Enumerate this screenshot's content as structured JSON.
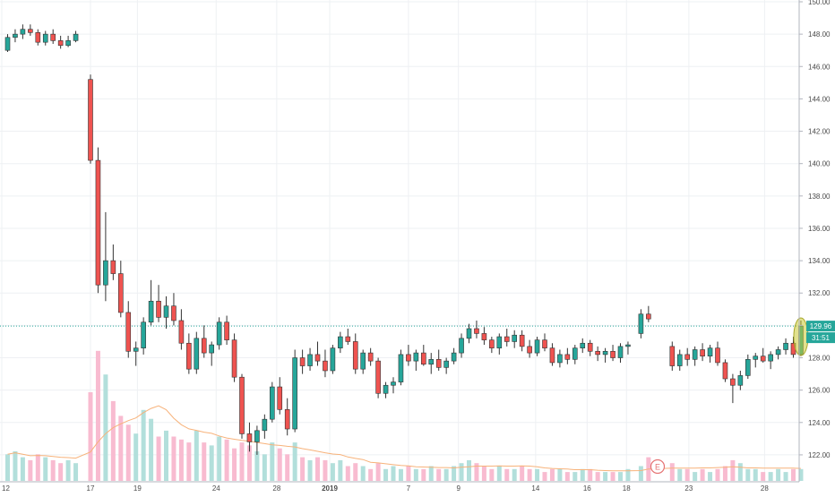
{
  "chart_data": {
    "type": "candlestick",
    "y_axis": {
      "range": [
        121,
        150
      ],
      "ticks": [
        "122.00",
        "124.00",
        "126.00",
        "128.00",
        "130.00",
        "132.00",
        "134.00",
        "136.00",
        "138.00",
        "140.00",
        "142.00",
        "144.00",
        "146.00",
        "148.00",
        "150.00"
      ]
    },
    "x_axis": {
      "ticks": [
        {
          "label": "12",
          "date": "2018-12-12"
        },
        {
          "label": "17",
          "date": "2018-12-17"
        },
        {
          "label": "19",
          "date": "2018-12-19"
        },
        {
          "label": "24",
          "date": "2018-12-24"
        },
        {
          "label": "28",
          "date": "2018-12-28"
        },
        {
          "label": "2019",
          "date": "2019-01-02"
        },
        {
          "label": "7",
          "date": "2019-01-07"
        },
        {
          "label": "9",
          "date": "2019-01-09"
        },
        {
          "label": "14",
          "date": "2019-01-14"
        },
        {
          "label": "16",
          "date": "2019-01-16"
        },
        {
          "label": "18",
          "date": "2019-01-18"
        },
        {
          "label": "23",
          "date": "2019-01-23"
        },
        {
          "label": "28",
          "date": "2019-01-28"
        }
      ]
    },
    "last_price": {
      "value": "129.96",
      "countdown": "31:51"
    },
    "event_marker": "E",
    "grid": true,
    "colors": {
      "up": "#26a69a",
      "down": "#ef5350",
      "volume_up": "#b2dfdb",
      "volume_down": "#f8bbd0",
      "ma_line": "#f7b27a",
      "price_line": "#26a69a",
      "highlight": "#c8c832"
    },
    "candles": [
      [
        147.0,
        148.0,
        146.9,
        147.8
      ],
      [
        147.8,
        148.3,
        147.5,
        148.0
      ],
      [
        148.0,
        148.6,
        147.7,
        148.3
      ],
      [
        148.3,
        148.6,
        147.9,
        148.1
      ],
      [
        148.1,
        148.3,
        147.3,
        147.5
      ],
      [
        147.5,
        148.2,
        147.3,
        148.0
      ],
      [
        148.0,
        148.3,
        147.4,
        147.6
      ],
      [
        147.6,
        147.9,
        147.1,
        147.3
      ],
      [
        147.3,
        147.9,
        147.2,
        147.6
      ],
      [
        147.6,
        148.2,
        147.5,
        148.0
      ],
      [
        145.2,
        145.5,
        140.0,
        140.2
      ],
      [
        140.2,
        141.0,
        132.0,
        132.5
      ],
      [
        132.5,
        137.0,
        131.5,
        134.0
      ],
      [
        134.0,
        135.0,
        132.8,
        133.2
      ],
      [
        133.2,
        134.0,
        130.5,
        130.8
      ],
      [
        130.8,
        131.5,
        128.0,
        128.4
      ],
      [
        128.4,
        129.0,
        127.5,
        128.6
      ],
      [
        128.6,
        130.5,
        128.2,
        130.2
      ],
      [
        130.2,
        132.8,
        130.0,
        131.5
      ],
      [
        131.5,
        132.5,
        130.2,
        130.5
      ],
      [
        130.5,
        131.8,
        129.8,
        131.2
      ],
      [
        131.2,
        132.0,
        130.0,
        130.3
      ],
      [
        130.3,
        131.0,
        128.5,
        128.9
      ],
      [
        128.9,
        129.5,
        127.0,
        127.3
      ],
      [
        127.3,
        129.6,
        127.0,
        129.2
      ],
      [
        129.2,
        130.0,
        128.0,
        128.3
      ],
      [
        128.3,
        129.0,
        127.5,
        128.8
      ],
      [
        128.8,
        130.5,
        128.5,
        130.2
      ],
      [
        130.2,
        130.6,
        128.8,
        129.1
      ],
      [
        129.1,
        129.5,
        126.5,
        126.8
      ],
      [
        126.8,
        127.0,
        123.0,
        123.3
      ],
      [
        123.3,
        124.0,
        122.2,
        122.8
      ],
      [
        122.8,
        123.8,
        122.0,
        123.5
      ],
      [
        123.5,
        124.5,
        123.0,
        124.2
      ],
      [
        124.2,
        126.5,
        124.0,
        126.2
      ],
      [
        126.2,
        126.8,
        124.5,
        124.8
      ],
      [
        124.8,
        125.5,
        123.2,
        123.6
      ],
      [
        123.6,
        128.5,
        123.4,
        128.0
      ],
      [
        128.0,
        128.5,
        127.0,
        127.5
      ],
      [
        127.5,
        128.6,
        127.2,
        128.2
      ],
      [
        128.2,
        129.0,
        127.5,
        127.8
      ],
      [
        127.8,
        128.5,
        126.8,
        127.2
      ],
      [
        127.2,
        128.8,
        127.0,
        128.6
      ],
      [
        128.6,
        129.6,
        128.3,
        129.3
      ],
      [
        129.3,
        129.8,
        128.8,
        129.0
      ],
      [
        129.0,
        129.5,
        127.0,
        127.3
      ],
      [
        127.3,
        128.5,
        127.0,
        128.3
      ],
      [
        128.3,
        128.6,
        127.5,
        127.8
      ],
      [
        127.8,
        128.0,
        125.5,
        125.8
      ],
      [
        125.8,
        126.5,
        125.5,
        126.3
      ],
      [
        126.3,
        126.8,
        125.8,
        126.5
      ],
      [
        126.5,
        128.5,
        126.3,
        128.2
      ],
      [
        128.2,
        128.8,
        127.5,
        127.8
      ],
      [
        127.8,
        128.5,
        127.2,
        128.3
      ],
      [
        128.3,
        128.8,
        127.5,
        127.6
      ],
      [
        127.6,
        128.3,
        127.0,
        127.9
      ],
      [
        127.9,
        128.5,
        127.2,
        127.4
      ],
      [
        127.4,
        128.0,
        127.0,
        127.8
      ],
      [
        127.8,
        128.6,
        127.6,
        128.3
      ],
      [
        128.3,
        129.5,
        128.0,
        129.2
      ],
      [
        129.2,
        130.1,
        128.9,
        129.8
      ],
      [
        129.8,
        130.3,
        129.2,
        129.5
      ],
      [
        129.5,
        129.9,
        128.8,
        129.1
      ],
      [
        129.1,
        129.3,
        128.3,
        128.6
      ],
      [
        128.6,
        129.5,
        128.2,
        129.3
      ],
      [
        129.3,
        129.8,
        128.7,
        129.0
      ],
      [
        129.0,
        129.7,
        128.6,
        129.4
      ],
      [
        129.4,
        129.7,
        128.4,
        128.7
      ],
      [
        128.7,
        129.1,
        128.0,
        128.3
      ],
      [
        128.3,
        129.3,
        128.1,
        129.1
      ],
      [
        129.1,
        129.5,
        128.4,
        128.6
      ],
      [
        128.6,
        128.9,
        127.5,
        127.7
      ],
      [
        127.7,
        128.5,
        127.4,
        128.2
      ],
      [
        128.2,
        128.6,
        127.6,
        127.9
      ],
      [
        127.9,
        128.8,
        127.6,
        128.6
      ],
      [
        128.6,
        129.2,
        128.3,
        128.9
      ],
      [
        128.9,
        129.1,
        128.1,
        128.4
      ],
      [
        128.4,
        128.7,
        127.8,
        128.2
      ],
      [
        128.2,
        128.6,
        127.7,
        128.4
      ],
      [
        128.4,
        128.8,
        127.8,
        128.0
      ],
      [
        128.0,
        128.9,
        127.7,
        128.7
      ],
      [
        128.7,
        129.0,
        128.2,
        128.8
      ],
      [
        129.5,
        131.0,
        129.2,
        130.7
      ],
      [
        130.7,
        131.2,
        130.2,
        130.4
      ],
      [
        128.7,
        129.0,
        127.2,
        127.5
      ],
      [
        127.5,
        128.5,
        127.2,
        128.2
      ],
      [
        128.2,
        128.6,
        127.5,
        127.9
      ],
      [
        127.9,
        128.7,
        127.5,
        128.5
      ],
      [
        128.5,
        128.9,
        127.8,
        128.1
      ],
      [
        128.1,
        128.8,
        127.7,
        128.6
      ],
      [
        128.6,
        129.0,
        127.5,
        127.7
      ],
      [
        127.7,
        127.9,
        126.5,
        126.7
      ],
      [
        126.7,
        127.0,
        125.2,
        126.3
      ],
      [
        126.3,
        127.2,
        126.0,
        126.9
      ],
      [
        126.9,
        128.2,
        126.7,
        127.9
      ],
      [
        127.9,
        128.3,
        127.4,
        128.1
      ],
      [
        128.1,
        128.6,
        127.7,
        127.8
      ],
      [
        127.8,
        128.4,
        127.3,
        128.2
      ],
      [
        128.2,
        128.7,
        127.9,
        128.5
      ],
      [
        128.5,
        129.2,
        128.2,
        128.9
      ],
      [
        128.9,
        129.3,
        128.0,
        128.2
      ],
      [
        128.2,
        130.3,
        128.1,
        129.96
      ]
    ],
    "volume": [
      9,
      10,
      8,
      7,
      9,
      8,
      7,
      6,
      7,
      6,
      30,
      44,
      36,
      27,
      22,
      19,
      16,
      24,
      21,
      15,
      17,
      15,
      14,
      13,
      17,
      13,
      12,
      15,
      14,
      11,
      13,
      12,
      10,
      9,
      13,
      11,
      9,
      13,
      8,
      7,
      8,
      7,
      6,
      7,
      5,
      6,
      5,
      4,
      6,
      4,
      5,
      4,
      5,
      4,
      4,
      5,
      4,
      4,
      5,
      6,
      7,
      6,
      5,
      4,
      5,
      4,
      4,
      5,
      4,
      4,
      3,
      4,
      4,
      3,
      3,
      4,
      4,
      3,
      3,
      3,
      3,
      4,
      5,
      8,
      6,
      4,
      4,
      3,
      4,
      3,
      4,
      5,
      7,
      6,
      4,
      4,
      3,
      3,
      4,
      3,
      4,
      4
    ]
  }
}
